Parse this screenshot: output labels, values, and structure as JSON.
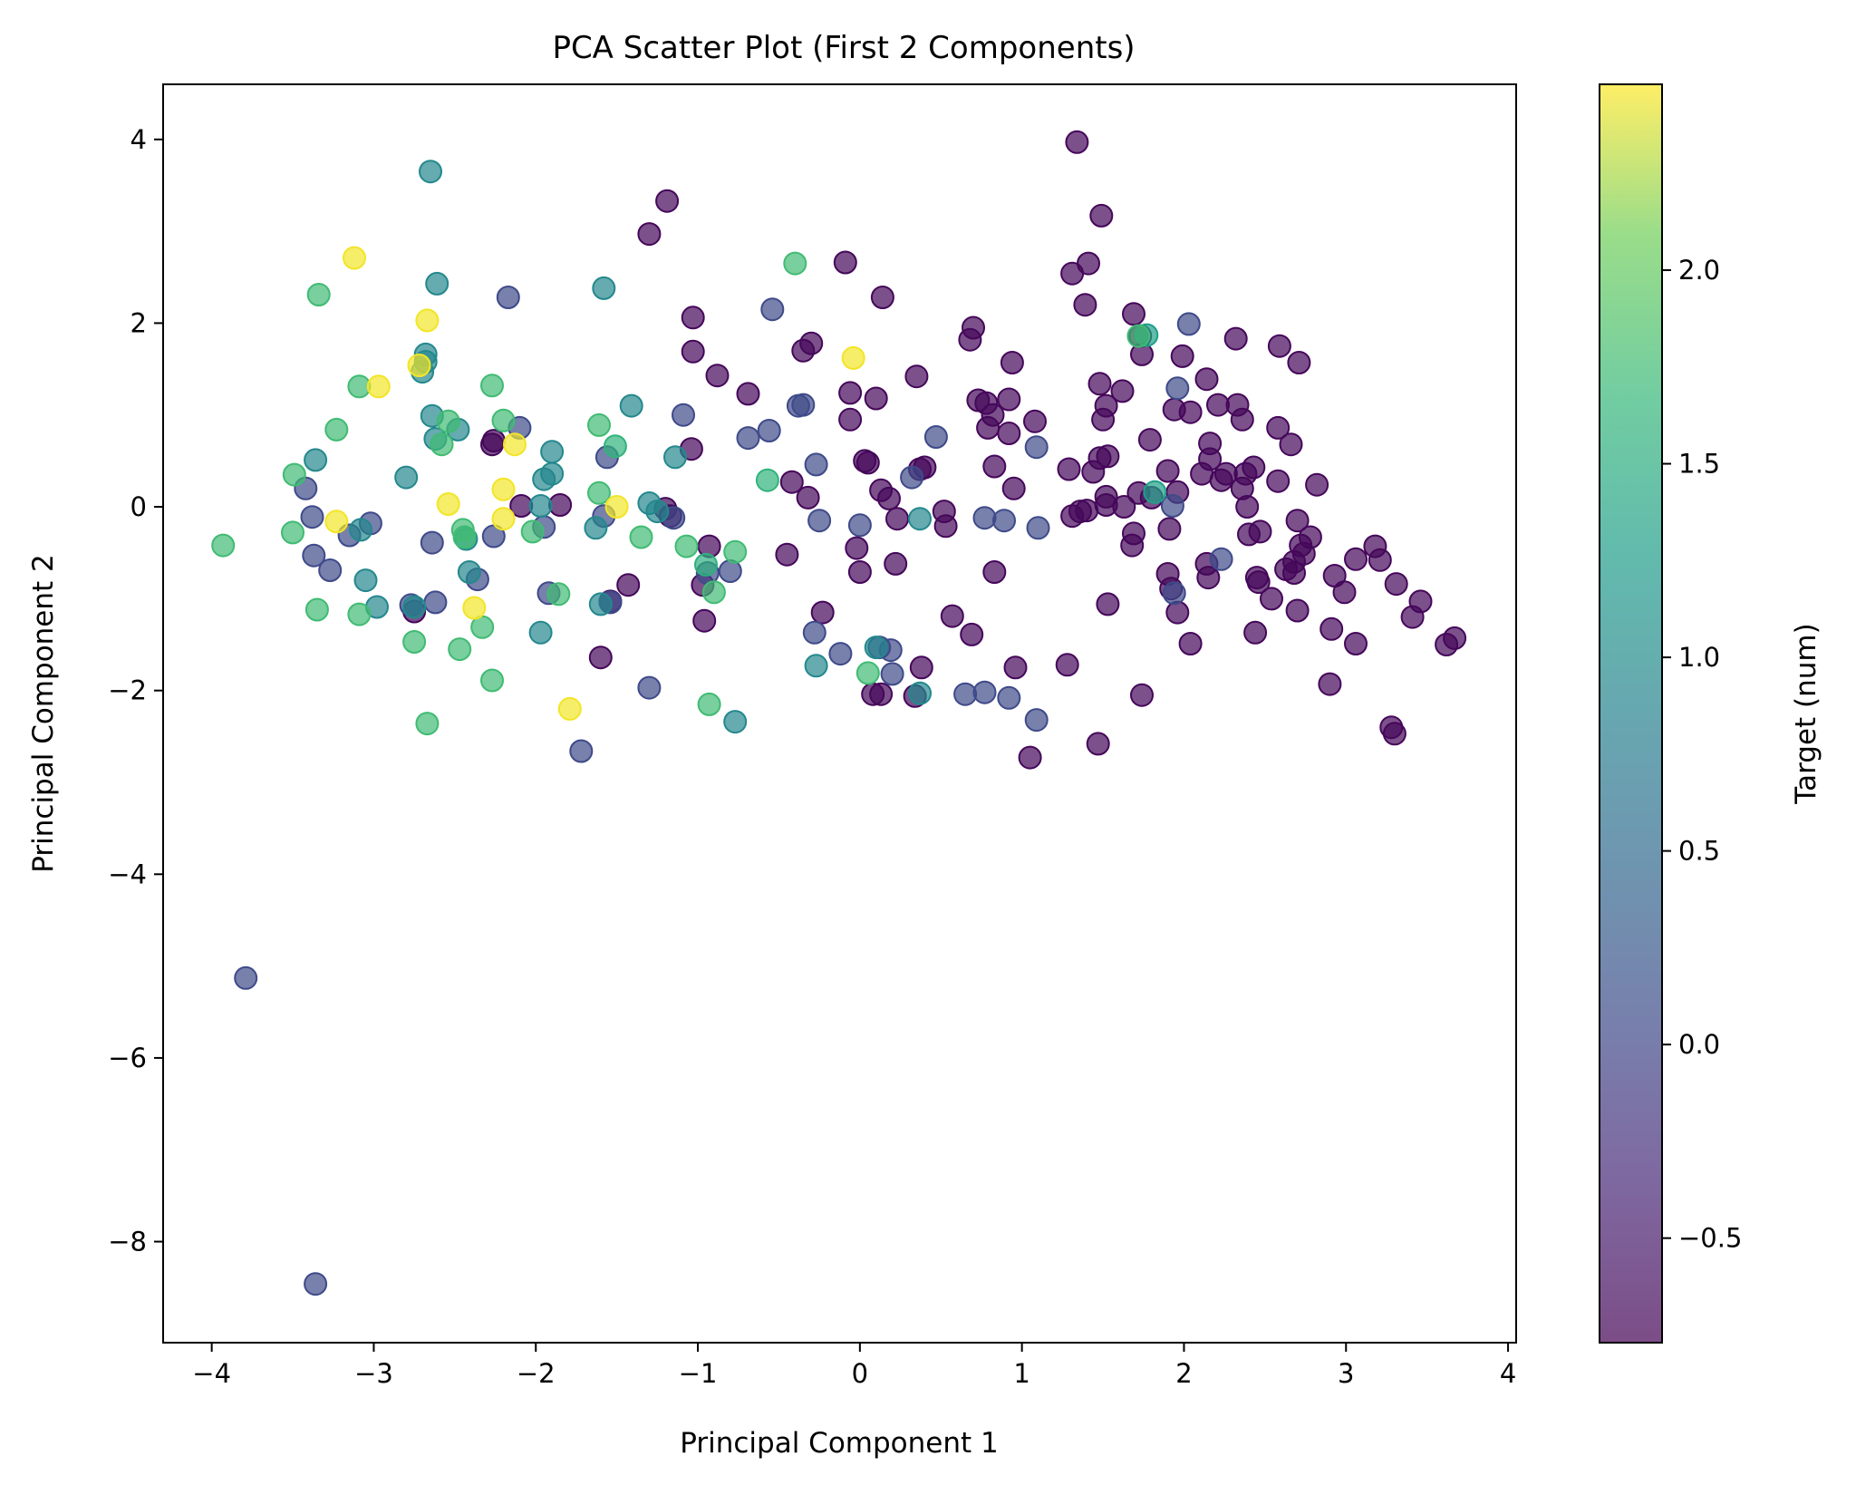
{
  "chart_data": {
    "type": "scatter",
    "title": "PCA Scatter Plot (First 2 Components)",
    "xlabel": "Principal Component 1",
    "ylabel": "Principal Component 2",
    "xlim": [
      -4.3,
      4.05
    ],
    "ylim": [
      -9.1,
      4.6
    ],
    "xticks": [
      -4,
      -3,
      -2,
      -1,
      0,
      1,
      2,
      3,
      4
    ],
    "yticks": [
      -8,
      -6,
      -4,
      -2,
      0,
      2,
      4
    ],
    "grid": false,
    "colormap": "viridis",
    "marker_alpha": 0.7,
    "colorbar": {
      "label": "Target (num)",
      "range": [
        -0.77,
        2.48
      ],
      "ticks": [
        -0.5,
        0.0,
        0.5,
        1.0,
        1.5,
        2.0
      ]
    },
    "points": [
      [
        1.34,
        3.97,
        -0.7
      ],
      [
        1.49,
        3.17,
        -0.7
      ],
      [
        1.31,
        2.54,
        -0.7
      ],
      [
        1.41,
        2.65,
        -0.7
      ],
      [
        1.39,
        2.2,
        -0.7
      ],
      [
        1.69,
        2.1,
        -0.7
      ],
      [
        1.73,
        1.86,
        -0.7
      ],
      [
        1.74,
        1.66,
        -0.7
      ],
      [
        1.62,
        1.26,
        -0.7
      ],
      [
        1.48,
        1.34,
        -0.7
      ],
      [
        1.52,
        1.1,
        -0.7
      ],
      [
        1.5,
        0.95,
        -0.7
      ],
      [
        1.99,
        1.64,
        -0.7
      ],
      [
        2.32,
        1.83,
        -0.7
      ],
      [
        2.59,
        1.75,
        -0.7
      ],
      [
        2.71,
        1.57,
        -0.7
      ],
      [
        2.14,
        1.39,
        -0.7
      ],
      [
        2.04,
        1.03,
        -0.7
      ],
      [
        1.94,
        1.06,
        -0.7
      ],
      [
        2.21,
        1.11,
        -0.7
      ],
      [
        2.33,
        1.11,
        -0.7
      ],
      [
        2.36,
        0.95,
        -0.7
      ],
      [
        2.58,
        0.86,
        -0.7
      ],
      [
        2.66,
        0.68,
        -0.7
      ],
      [
        2.16,
        0.69,
        -0.7
      ],
      [
        2.16,
        0.52,
        -0.7
      ],
      [
        1.79,
        0.73,
        -0.7
      ],
      [
        1.48,
        0.53,
        -0.7
      ],
      [
        1.53,
        0.55,
        -0.7
      ],
      [
        1.44,
        0.38,
        -0.7
      ],
      [
        1.29,
        0.41,
        -0.7
      ],
      [
        1.9,
        0.39,
        -0.7
      ],
      [
        2.11,
        0.36,
        -0.7
      ],
      [
        2.26,
        0.36,
        -0.7
      ],
      [
        2.43,
        0.43,
        -0.7
      ],
      [
        2.38,
        0.36,
        -0.7
      ],
      [
        2.58,
        0.28,
        -0.7
      ],
      [
        2.82,
        0.24,
        -0.7
      ],
      [
        2.23,
        0.29,
        -0.7
      ],
      [
        1.96,
        0.16,
        -0.7
      ],
      [
        1.8,
        0.1,
        -0.7
      ],
      [
        1.72,
        0.15,
        -0.7
      ],
      [
        1.52,
        0.11,
        -0.7
      ],
      [
        1.52,
        0.02,
        -0.7
      ],
      [
        1.63,
        0.0,
        -0.7
      ],
      [
        1.4,
        -0.04,
        -0.7
      ],
      [
        1.36,
        -0.05,
        -0.7
      ],
      [
        1.31,
        -0.1,
        -0.7
      ],
      [
        2.39,
        0.0,
        -0.7
      ],
      [
        2.36,
        0.2,
        -0.7
      ],
      [
        1.69,
        -0.29,
        -0.7
      ],
      [
        1.68,
        -0.42,
        -0.7
      ],
      [
        1.91,
        -0.24,
        -0.7
      ],
      [
        2.4,
        -0.3,
        -0.7
      ],
      [
        2.47,
        -0.27,
        -0.7
      ],
      [
        2.7,
        -0.15,
        -0.7
      ],
      [
        2.78,
        -0.33,
        -0.7
      ],
      [
        2.72,
        -0.42,
        -0.7
      ],
      [
        2.74,
        -0.51,
        -0.7
      ],
      [
        2.68,
        -0.6,
        -0.7
      ],
      [
        2.63,
        -0.68,
        -0.7
      ],
      [
        2.14,
        -0.62,
        -0.7
      ],
      [
        2.15,
        -0.77,
        -0.7
      ],
      [
        2.45,
        -0.77,
        -0.7
      ],
      [
        2.46,
        -0.82,
        -0.7
      ],
      [
        2.68,
        -0.72,
        -0.7
      ],
      [
        2.93,
        -0.75,
        -0.7
      ],
      [
        2.99,
        -0.93,
        -0.7
      ],
      [
        3.06,
        -0.57,
        -0.7
      ],
      [
        3.18,
        -0.43,
        -0.7
      ],
      [
        3.21,
        -0.58,
        -0.7
      ],
      [
        3.31,
        -0.84,
        -0.7
      ],
      [
        3.46,
        -1.03,
        -0.7
      ],
      [
        3.41,
        -1.2,
        -0.7
      ],
      [
        3.62,
        -1.5,
        -0.7
      ],
      [
        3.67,
        -1.43,
        -0.7
      ],
      [
        3.06,
        -1.49,
        -0.7
      ],
      [
        2.91,
        -1.33,
        -0.7
      ],
      [
        2.7,
        -1.13,
        -0.7
      ],
      [
        2.54,
        -1.0,
        -0.7
      ],
      [
        2.44,
        -1.37,
        -0.7
      ],
      [
        1.9,
        -0.73,
        -0.7
      ],
      [
        1.92,
        -0.89,
        -0.7
      ],
      [
        1.96,
        -1.15,
        -0.7
      ],
      [
        2.04,
        -1.49,
        -0.7
      ],
      [
        1.53,
        -1.06,
        -0.7
      ],
      [
        1.74,
        -2.05,
        -0.7
      ],
      [
        1.47,
        -2.58,
        -0.7
      ],
      [
        3.28,
        -2.4,
        -0.7
      ],
      [
        3.3,
        -2.47,
        -0.7
      ],
      [
        2.9,
        -1.93,
        -0.7
      ],
      [
        1.28,
        -1.72,
        -0.7
      ],
      [
        0.96,
        -1.75,
        -0.7
      ],
      [
        1.05,
        -2.73,
        -0.7
      ],
      [
        0.82,
        1.0,
        -0.7
      ],
      [
        0.92,
        1.17,
        -0.7
      ],
      [
        0.94,
        1.57,
        -0.7
      ],
      [
        1.08,
        0.93,
        -0.7
      ],
      [
        0.78,
        1.13,
        -0.7
      ],
      [
        0.73,
        1.16,
        -0.7
      ],
      [
        0.7,
        1.95,
        -0.7
      ],
      [
        0.68,
        1.82,
        -0.7
      ],
      [
        0.79,
        0.86,
        -0.7
      ],
      [
        0.92,
        0.8,
        -0.7
      ],
      [
        0.83,
        0.44,
        -0.7
      ],
      [
        0.95,
        0.2,
        -0.7
      ],
      [
        0.83,
        -0.71,
        -0.7
      ],
      [
        0.57,
        -1.19,
        -0.7
      ],
      [
        0.69,
        -1.39,
        -0.7
      ],
      [
        0.37,
        0.41,
        -0.7
      ],
      [
        0.4,
        0.43,
        -0.7
      ],
      [
        0.35,
        1.42,
        -0.7
      ],
      [
        0.52,
        -0.05,
        -0.7
      ],
      [
        0.53,
        -0.21,
        -0.7
      ],
      [
        0.13,
        0.18,
        -0.7
      ],
      [
        0.18,
        0.09,
        -0.7
      ],
      [
        0.23,
        -0.13,
        -0.7
      ],
      [
        0.22,
        -0.62,
        -0.7
      ],
      [
        0.03,
        0.5,
        -0.7
      ],
      [
        0.05,
        0.48,
        -0.7
      ],
      [
        -0.06,
        1.24,
        -0.7
      ],
      [
        0.1,
        1.18,
        -0.7
      ],
      [
        0.14,
        2.28,
        -0.7
      ],
      [
        -0.09,
        2.66,
        -0.7
      ],
      [
        -0.06,
        0.95,
        -0.7
      ],
      [
        -0.02,
        -0.45,
        -0.7
      ],
      [
        0.0,
        -0.71,
        -0.7
      ],
      [
        0.08,
        -2.04,
        -0.7
      ],
      [
        0.13,
        -2.04,
        -0.7
      ],
      [
        0.34,
        -2.06,
        -0.7
      ],
      [
        0.38,
        -1.75,
        -0.7
      ],
      [
        -0.3,
        1.78,
        -0.7
      ],
      [
        -0.35,
        1.7,
        -0.7
      ],
      [
        -0.32,
        0.1,
        -0.7
      ],
      [
        -0.42,
        0.27,
        -0.7
      ],
      [
        -0.45,
        -0.52,
        -0.7
      ],
      [
        -0.23,
        -1.15,
        -0.7
      ],
      [
        -0.69,
        1.23,
        -0.7
      ],
      [
        -0.88,
        1.43,
        -0.7
      ],
      [
        -1.03,
        2.06,
        -0.7
      ],
      [
        -1.03,
        1.69,
        -0.7
      ],
      [
        -1.04,
        0.63,
        -0.7
      ],
      [
        -0.93,
        -0.43,
        -0.7
      ],
      [
        -0.97,
        -0.85,
        -0.7
      ],
      [
        -0.96,
        -1.24,
        -0.7
      ],
      [
        -1.19,
        3.33,
        -0.7
      ],
      [
        -1.3,
        2.97,
        -0.7
      ],
      [
        -1.43,
        -0.85,
        -0.7
      ],
      [
        -1.6,
        -1.64,
        -0.7
      ],
      [
        -1.54,
        -1.03,
        -0.7
      ],
      [
        -1.17,
        -0.1,
        -0.7
      ],
      [
        -1.2,
        -0.02,
        -0.7
      ],
      [
        -1.85,
        0.02,
        -0.7
      ],
      [
        -2.09,
        0.01,
        -0.7
      ],
      [
        -2.27,
        0.68,
        -0.7
      ],
      [
        -2.75,
        -1.14,
        -0.7
      ],
      [
        -2.26,
        0.72,
        -0.7
      ],
      [
        -1.09,
        1.0,
        0.05
      ],
      [
        -0.54,
        2.15,
        0.05
      ],
      [
        -0.56,
        0.83,
        0.05
      ],
      [
        -0.69,
        0.75,
        0.05
      ],
      [
        -0.38,
        1.1,
        0.05
      ],
      [
        -0.35,
        1.11,
        0.05
      ],
      [
        -0.27,
        0.46,
        0.05
      ],
      [
        -0.25,
        -0.15,
        0.05
      ],
      [
        -0.28,
        -1.37,
        0.05
      ],
      [
        -0.12,
        -1.6,
        0.05
      ],
      [
        0.0,
        -0.2,
        0.05
      ],
      [
        0.12,
        -1.53,
        0.05
      ],
      [
        0.19,
        -1.56,
        0.05
      ],
      [
        0.2,
        -1.82,
        0.05
      ],
      [
        -0.8,
        -0.7,
        0.05
      ],
      [
        -0.94,
        -0.72,
        0.05
      ],
      [
        -1.3,
        -1.97,
        0.05
      ],
      [
        -1.72,
        -2.66,
        0.05
      ],
      [
        -1.54,
        -1.04,
        0.05
      ],
      [
        -1.58,
        -0.1,
        0.05
      ],
      [
        -1.56,
        0.54,
        0.05
      ],
      [
        -1.15,
        -0.12,
        0.05
      ],
      [
        -1.92,
        -0.94,
        0.05
      ],
      [
        -1.95,
        -0.22,
        0.05
      ],
      [
        -2.1,
        0.86,
        0.05
      ],
      [
        -2.17,
        2.28,
        0.05
      ],
      [
        -2.26,
        -0.32,
        0.05
      ],
      [
        -2.36,
        -0.79,
        0.05
      ],
      [
        -2.62,
        -1.04,
        0.05
      ],
      [
        -2.64,
        -0.39,
        0.05
      ],
      [
        -2.77,
        -1.07,
        0.05
      ],
      [
        -3.15,
        -0.31,
        0.05
      ],
      [
        -3.02,
        -0.18,
        0.05
      ],
      [
        -3.27,
        -0.69,
        0.05
      ],
      [
        -3.37,
        -0.53,
        0.05
      ],
      [
        -3.38,
        -0.11,
        0.05
      ],
      [
        -3.42,
        0.2,
        0.05
      ],
      [
        -3.79,
        -5.13,
        0.05
      ],
      [
        -3.36,
        -8.46,
        0.05
      ],
      [
        0.32,
        0.32,
        0.05
      ],
      [
        0.47,
        0.76,
        0.05
      ],
      [
        0.77,
        -0.12,
        0.05
      ],
      [
        0.89,
        -0.15,
        0.05
      ],
      [
        0.65,
        -2.04,
        0.05
      ],
      [
        0.77,
        -2.02,
        0.05
      ],
      [
        0.92,
        -2.08,
        0.05
      ],
      [
        1.1,
        -0.23,
        0.05
      ],
      [
        1.09,
        0.65,
        0.05
      ],
      [
        1.09,
        -2.32,
        0.05
      ],
      [
        1.96,
        1.29,
        0.05
      ],
      [
        2.03,
        1.99,
        0.05
      ],
      [
        1.93,
        0.01,
        0.05
      ],
      [
        1.94,
        -0.94,
        0.05
      ],
      [
        2.23,
        -0.57,
        0.05
      ],
      [
        -2.65,
        3.65,
        0.95
      ],
      [
        -2.61,
        2.43,
        0.95
      ],
      [
        -2.68,
        1.66,
        0.95
      ],
      [
        -2.68,
        1.58,
        0.95
      ],
      [
        -2.7,
        1.47,
        0.95
      ],
      [
        -2.64,
        0.99,
        0.95
      ],
      [
        -2.62,
        0.74,
        0.95
      ],
      [
        -2.8,
        0.32,
        0.95
      ],
      [
        -2.48,
        0.84,
        0.95
      ],
      [
        -2.43,
        -0.35,
        0.95
      ],
      [
        -2.41,
        -0.71,
        0.95
      ],
      [
        -2.75,
        -1.09,
        0.95
      ],
      [
        -2.98,
        -1.09,
        0.95
      ],
      [
        -3.05,
        -0.8,
        0.95
      ],
      [
        -3.08,
        -0.25,
        0.95
      ],
      [
        -3.36,
        0.51,
        0.95
      ],
      [
        -1.95,
        0.3,
        0.95
      ],
      [
        -1.9,
        0.6,
        0.95
      ],
      [
        -1.9,
        0.36,
        0.95
      ],
      [
        -1.97,
        0.01,
        0.95
      ],
      [
        -1.97,
        -1.37,
        0.95
      ],
      [
        -1.63,
        -0.23,
        0.95
      ],
      [
        -1.6,
        -1.06,
        0.95
      ],
      [
        -1.58,
        2.38,
        0.95
      ],
      [
        -1.41,
        1.1,
        0.95
      ],
      [
        -1.3,
        0.04,
        0.95
      ],
      [
        -1.25,
        -0.05,
        0.95
      ],
      [
        -1.14,
        0.54,
        0.95
      ],
      [
        -0.77,
        -2.34,
        0.95
      ],
      [
        -0.27,
        -1.73,
        0.95
      ],
      [
        0.1,
        -1.53,
        0.95
      ],
      [
        0.37,
        -2.03,
        0.95
      ],
      [
        0.37,
        -0.13,
        0.95
      ],
      [
        1.77,
        1.87,
        1.3
      ],
      [
        1.82,
        0.16,
        1.3
      ],
      [
        -0.95,
        -0.63,
        1.55
      ],
      [
        -1.51,
        0.66,
        1.6
      ],
      [
        -0.57,
        0.29,
        1.6
      ],
      [
        -3.93,
        -0.42,
        1.75
      ],
      [
        -3.49,
        0.35,
        1.75
      ],
      [
        -3.5,
        -0.28,
        1.75
      ],
      [
        -3.35,
        -1.12,
        1.75
      ],
      [
        -3.34,
        2.31,
        1.75
      ],
      [
        -3.23,
        0.84,
        1.75
      ],
      [
        -3.09,
        1.31,
        1.75
      ],
      [
        -3.09,
        -1.17,
        1.75
      ],
      [
        -2.75,
        -1.47,
        1.75
      ],
      [
        -2.67,
        -2.36,
        1.75
      ],
      [
        -2.58,
        0.68,
        1.75
      ],
      [
        -2.54,
        0.93,
        1.75
      ],
      [
        -2.47,
        -1.55,
        1.75
      ],
      [
        -2.45,
        -0.25,
        1.75
      ],
      [
        -2.44,
        -0.33,
        1.75
      ],
      [
        -2.33,
        -1.31,
        1.75
      ],
      [
        -2.27,
        1.32,
        1.75
      ],
      [
        -2.27,
        -1.89,
        1.75
      ],
      [
        -2.2,
        0.94,
        1.75
      ],
      [
        -2.02,
        -0.27,
        1.75
      ],
      [
        -1.86,
        -0.95,
        1.75
      ],
      [
        -1.61,
        0.89,
        1.75
      ],
      [
        -1.61,
        0.15,
        1.75
      ],
      [
        -1.35,
        -0.33,
        1.75
      ],
      [
        -1.07,
        -0.43,
        1.75
      ],
      [
        -0.93,
        -2.15,
        1.75
      ],
      [
        -0.9,
        -0.93,
        1.75
      ],
      [
        -0.77,
        -0.49,
        1.75
      ],
      [
        -0.4,
        2.65,
        1.75
      ],
      [
        0.05,
        -1.81,
        1.75
      ],
      [
        1.72,
        1.86,
        1.75
      ],
      [
        -3.12,
        2.71,
        2.45
      ],
      [
        -2.97,
        1.31,
        2.45
      ],
      [
        -2.67,
        2.03,
        2.45
      ],
      [
        -2.72,
        1.54,
        2.45
      ],
      [
        -2.54,
        0.03,
        2.45
      ],
      [
        -3.23,
        -0.16,
        2.45
      ],
      [
        -2.38,
        -1.1,
        2.45
      ],
      [
        -2.2,
        0.19,
        2.45
      ],
      [
        -2.2,
        -0.13,
        2.45
      ],
      [
        -2.13,
        0.68,
        2.45
      ],
      [
        -1.79,
        -2.2,
        2.45
      ],
      [
        -1.5,
        0.0,
        2.45
      ],
      [
        -0.04,
        1.62,
        2.45
      ]
    ]
  }
}
